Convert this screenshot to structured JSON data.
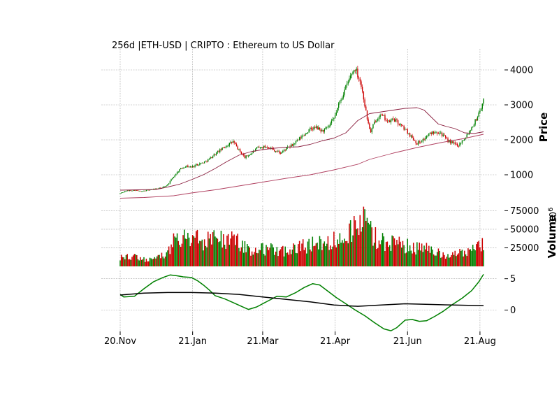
{
  "chart_data": {
    "type": "candlestick",
    "title": "256d |ETH-USD | CRIPTO : Ethereum to US Dollar",
    "x_ticks": [
      "20.Nov",
      "21.Jan",
      "21.Mar",
      "21.Apr",
      "21.Jun",
      "21.Aug"
    ],
    "x_tick_days": [
      0,
      61,
      120,
      181,
      242,
      303
    ],
    "num_days": 306,
    "colors": {
      "up": "#008000",
      "down": "#cc0000",
      "ma_short": "#8b2040",
      "ma_long": "#b04060",
      "osc": "#008000",
      "signal": "#000000"
    },
    "price_panel": {
      "ylabel": "Price",
      "yticks": [
        1000,
        2000,
        3000,
        4000
      ],
      "ylim": [
        200,
        4600
      ],
      "price_path": [
        [
          0,
          470
        ],
        [
          5,
          540
        ],
        [
          12,
          560
        ],
        [
          18,
          520
        ],
        [
          25,
          575
        ],
        [
          30,
          600
        ],
        [
          35,
          620
        ],
        [
          40,
          720
        ],
        [
          45,
          950
        ],
        [
          50,
          1150
        ],
        [
          55,
          1250
        ],
        [
          60,
          1220
        ],
        [
          65,
          1300
        ],
        [
          70,
          1350
        ],
        [
          75,
          1450
        ],
        [
          80,
          1600
        ],
        [
          85,
          1720
        ],
        [
          90,
          1850
        ],
        [
          95,
          1950
        ],
        [
          100,
          1700
        ],
        [
          105,
          1500
        ],
        [
          110,
          1600
        ],
        [
          115,
          1750
        ],
        [
          120,
          1800
        ],
        [
          125,
          1800
        ],
        [
          130,
          1700
        ],
        [
          135,
          1620
        ],
        [
          140,
          1750
        ],
        [
          145,
          1850
        ],
        [
          150,
          2000
        ],
        [
          155,
          2150
        ],
        [
          160,
          2300
        ],
        [
          165,
          2350
        ],
        [
          170,
          2250
        ],
        [
          175,
          2350
        ],
        [
          180,
          2600
        ],
        [
          185,
          3100
        ],
        [
          190,
          3500
        ],
        [
          195,
          3900
        ],
        [
          198,
          4050
        ],
        [
          202,
          3700
        ],
        [
          205,
          3200
        ],
        [
          208,
          2600
        ],
        [
          211,
          2200
        ],
        [
          214,
          2500
        ],
        [
          218,
          2700
        ],
        [
          222,
          2650
        ],
        [
          226,
          2500
        ],
        [
          230,
          2600
        ],
        [
          235,
          2450
        ],
        [
          240,
          2300
        ],
        [
          245,
          2100
        ],
        [
          250,
          1900
        ],
        [
          255,
          2000
        ],
        [
          260,
          2150
        ],
        [
          265,
          2250
        ],
        [
          270,
          2200
        ],
        [
          275,
          2000
        ],
        [
          280,
          1900
        ],
        [
          285,
          1850
        ],
        [
          290,
          2050
        ],
        [
          295,
          2300
        ],
        [
          300,
          2600
        ],
        [
          303,
          2850
        ],
        [
          306,
          3100
        ]
      ],
      "ma_short": [
        [
          0,
          560
        ],
        [
          30,
          580
        ],
        [
          40,
          650
        ],
        [
          50,
          730
        ],
        [
          60,
          860
        ],
        [
          70,
          1000
        ],
        [
          80,
          1180
        ],
        [
          90,
          1380
        ],
        [
          100,
          1560
        ],
        [
          110,
          1660
        ],
        [
          120,
          1720
        ],
        [
          130,
          1760
        ],
        [
          140,
          1790
        ],
        [
          150,
          1800
        ],
        [
          160,
          1870
        ],
        [
          170,
          1970
        ],
        [
          180,
          2050
        ],
        [
          190,
          2200
        ],
        [
          200,
          2550
        ],
        [
          210,
          2750
        ],
        [
          220,
          2800
        ],
        [
          230,
          2850
        ],
        [
          240,
          2900
        ],
        [
          250,
          2920
        ],
        [
          256,
          2850
        ],
        [
          262,
          2650
        ],
        [
          268,
          2450
        ],
        [
          275,
          2380
        ],
        [
          282,
          2320
        ],
        [
          290,
          2200
        ],
        [
          298,
          2180
        ],
        [
          306,
          2230
        ]
      ],
      "ma_long": [
        [
          0,
          330
        ],
        [
          20,
          350
        ],
        [
          45,
          400
        ],
        [
          60,
          480
        ],
        [
          80,
          570
        ],
        [
          100,
          680
        ],
        [
          120,
          790
        ],
        [
          140,
          900
        ],
        [
          160,
          1000
        ],
        [
          180,
          1140
        ],
        [
          200,
          1300
        ],
        [
          210,
          1440
        ],
        [
          230,
          1620
        ],
        [
          250,
          1780
        ],
        [
          270,
          1920
        ],
        [
          290,
          2040
        ],
        [
          306,
          2160
        ]
      ]
    },
    "volume_panel": {
      "ylabel": "Volume",
      "unit_label": "10^6",
      "yticks": [
        25000,
        50000,
        75000
      ],
      "ylim": [
        0,
        82000
      ],
      "volume_path": [
        [
          0,
          12000
        ],
        [
          10,
          13000
        ],
        [
          20,
          9000
        ],
        [
          30,
          13000
        ],
        [
          40,
          18000
        ],
        [
          45,
          32000
        ],
        [
          50,
          42000
        ],
        [
          55,
          38000
        ],
        [
          60,
          34000
        ],
        [
          65,
          40000
        ],
        [
          70,
          33000
        ],
        [
          75,
          38000
        ],
        [
          80,
          40000
        ],
        [
          85,
          39000
        ],
        [
          90,
          38000
        ],
        [
          100,
          32000
        ],
        [
          110,
          22000
        ],
        [
          120,
          23000
        ],
        [
          130,
          23000
        ],
        [
          140,
          22000
        ],
        [
          150,
          25000
        ],
        [
          160,
          30000
        ],
        [
          170,
          29000
        ],
        [
          180,
          35000
        ],
        [
          185,
          40000
        ],
        [
          190,
          45000
        ],
        [
          195,
          52000
        ],
        [
          200,
          60000
        ],
        [
          205,
          62000
        ],
        [
          210,
          50000
        ],
        [
          215,
          40000
        ],
        [
          220,
          34000
        ],
        [
          230,
          32000
        ],
        [
          240,
          27000
        ],
        [
          250,
          26000
        ],
        [
          255,
          25000
        ],
        [
          260,
          22000
        ],
        [
          270,
          16000
        ],
        [
          280,
          14000
        ],
        [
          290,
          19000
        ],
        [
          300,
          26000
        ],
        [
          306,
          28000
        ]
      ]
    },
    "oscillator_panel": {
      "yticks": [
        0,
        5
      ],
      "ylim": [
        -3.4,
        6.3
      ],
      "osc_line": [
        [
          0,
          2.5
        ],
        [
          3,
          2.1
        ],
        [
          12,
          2.2
        ],
        [
          20,
          3.4
        ],
        [
          28,
          4.5
        ],
        [
          36,
          5.2
        ],
        [
          42,
          5.6
        ],
        [
          47,
          5.5
        ],
        [
          53,
          5.3
        ],
        [
          60,
          5.2
        ],
        [
          65,
          4.7
        ],
        [
          70,
          4.0
        ],
        [
          75,
          3.2
        ],
        [
          80,
          2.3
        ],
        [
          88,
          1.8
        ],
        [
          95,
          1.2
        ],
        [
          102,
          0.6
        ],
        [
          108,
          0.1
        ],
        [
          115,
          0.5
        ],
        [
          122,
          1.2
        ],
        [
          132,
          2.2
        ],
        [
          140,
          2.1
        ],
        [
          148,
          2.8
        ],
        [
          155,
          3.6
        ],
        [
          162,
          4.2
        ],
        [
          168,
          4.0
        ],
        [
          175,
          3.0
        ],
        [
          182,
          2.0
        ],
        [
          190,
          1.0
        ],
        [
          198,
          0.0
        ],
        [
          206,
          -0.9
        ],
        [
          214,
          -2.0
        ],
        [
          222,
          -3.0
        ],
        [
          228,
          -3.3
        ],
        [
          233,
          -2.8
        ],
        [
          240,
          -1.6
        ],
        [
          246,
          -1.5
        ],
        [
          252,
          -1.8
        ],
        [
          258,
          -1.7
        ],
        [
          265,
          -1.0
        ],
        [
          272,
          -0.2
        ],
        [
          280,
          0.9
        ],
        [
          288,
          1.9
        ],
        [
          296,
          3.1
        ],
        [
          302,
          4.5
        ],
        [
          306,
          5.7
        ]
      ],
      "signal_line": [
        [
          0,
          2.4
        ],
        [
          20,
          2.7
        ],
        [
          40,
          2.8
        ],
        [
          60,
          2.8
        ],
        [
          80,
          2.7
        ],
        [
          100,
          2.5
        ],
        [
          120,
          2.1
        ],
        [
          140,
          1.7
        ],
        [
          160,
          1.3
        ],
        [
          180,
          0.8
        ],
        [
          200,
          0.6
        ],
        [
          220,
          0.8
        ],
        [
          240,
          1.0
        ],
        [
          260,
          0.9
        ],
        [
          280,
          0.8
        ],
        [
          306,
          0.7
        ]
      ]
    }
  }
}
